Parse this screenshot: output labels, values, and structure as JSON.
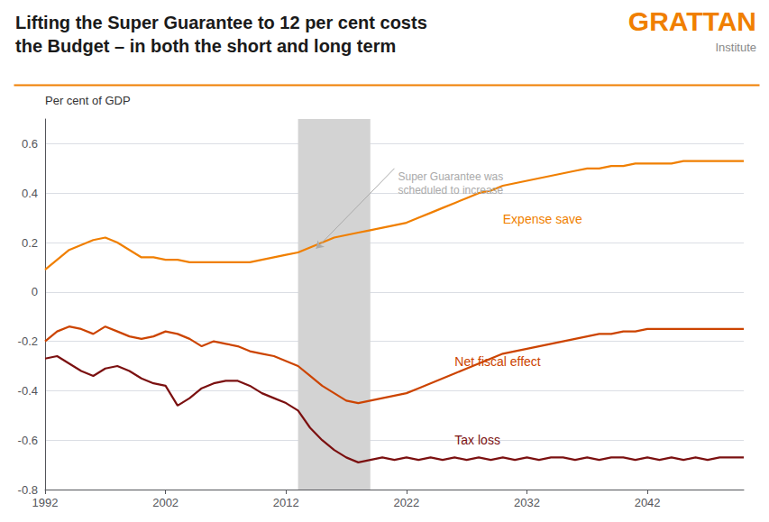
{
  "chart_data": {
    "type": "line",
    "title": "Lifting the Super Guarantee to 12 per cent costs",
    "subtitle": "the Budget – in both the short and long term",
    "title_color": "#1a1a1a",
    "background_color": "#ffffff",
    "ylabel": "Per cent of GDP",
    "x": [
      1992,
      1993,
      1994,
      1995,
      1996,
      1997,
      1998,
      1999,
      2000,
      2001,
      2002,
      2003,
      2004,
      2005,
      2006,
      2007,
      2008,
      2009,
      2010,
      2011,
      2012,
      2013,
      2014,
      2015,
      2016,
      2017,
      2018,
      2019,
      2020,
      2021,
      2022,
      2023,
      2024,
      2025,
      2026,
      2027,
      2028,
      2029,
      2030,
      2031,
      2032,
      2033,
      2034,
      2035,
      2036,
      2037,
      2038,
      2039,
      2040,
      2041,
      2042,
      2043,
      2044,
      2045,
      2046,
      2047,
      2048,
      2049,
      2050
    ],
    "series": [
      {
        "name": "Expense save",
        "color": "#F07F00",
        "label_at": [
          2030,
          0.295
        ],
        "values": [
          0.09,
          0.13,
          0.17,
          0.19,
          0.21,
          0.22,
          0.2,
          0.17,
          0.14,
          0.14,
          0.13,
          0.13,
          0.12,
          0.12,
          0.12,
          0.12,
          0.12,
          0.12,
          0.13,
          0.14,
          0.15,
          0.16,
          0.18,
          0.2,
          0.22,
          0.23,
          0.24,
          0.25,
          0.26,
          0.27,
          0.28,
          0.3,
          0.32,
          0.34,
          0.36,
          0.38,
          0.4,
          0.41,
          0.43,
          0.44,
          0.45,
          0.46,
          0.47,
          0.48,
          0.49,
          0.5,
          0.5,
          0.51,
          0.51,
          0.52,
          0.52,
          0.52,
          0.52,
          0.53,
          0.53,
          0.53,
          0.53,
          0.53,
          0.53
        ]
      },
      {
        "name": "Net fiscal effect",
        "color": "#CC4400",
        "label_at": [
          2026,
          -0.28
        ],
        "values": [
          -0.2,
          -0.16,
          -0.14,
          -0.15,
          -0.17,
          -0.14,
          -0.16,
          -0.18,
          -0.19,
          -0.18,
          -0.16,
          -0.17,
          -0.19,
          -0.22,
          -0.2,
          -0.21,
          -0.22,
          -0.24,
          -0.25,
          -0.26,
          -0.28,
          -0.3,
          -0.34,
          -0.38,
          -0.41,
          -0.44,
          -0.45,
          -0.44,
          -0.43,
          -0.42,
          -0.41,
          -0.39,
          -0.37,
          -0.35,
          -0.33,
          -0.31,
          -0.29,
          -0.27,
          -0.25,
          -0.24,
          -0.23,
          -0.22,
          -0.21,
          -0.2,
          -0.19,
          -0.18,
          -0.17,
          -0.17,
          -0.16,
          -0.16,
          -0.15,
          -0.15,
          -0.15,
          -0.15,
          -0.15,
          -0.15,
          -0.15,
          -0.15,
          -0.15
        ]
      },
      {
        "name": "Tax loss",
        "color": "#7B1010",
        "label_at": [
          2026,
          -0.6
        ],
        "values": [
          -0.27,
          -0.26,
          -0.29,
          -0.32,
          -0.34,
          -0.31,
          -0.3,
          -0.32,
          -0.35,
          -0.37,
          -0.38,
          -0.46,
          -0.43,
          -0.39,
          -0.37,
          -0.36,
          -0.36,
          -0.38,
          -0.41,
          -0.43,
          -0.45,
          -0.48,
          -0.55,
          -0.6,
          -0.64,
          -0.67,
          -0.69,
          -0.68,
          -0.67,
          -0.68,
          -0.67,
          -0.68,
          -0.67,
          -0.68,
          -0.67,
          -0.68,
          -0.67,
          -0.68,
          -0.67,
          -0.68,
          -0.67,
          -0.68,
          -0.67,
          -0.67,
          -0.68,
          -0.67,
          -0.68,
          -0.67,
          -0.67,
          -0.68,
          -0.67,
          -0.68,
          -0.67,
          -0.68,
          -0.67,
          -0.68,
          -0.67,
          -0.67,
          -0.67
        ]
      }
    ],
    "xlim": [
      1992,
      2050
    ],
    "ylim": [
      -0.8,
      0.7
    ],
    "xticks": [
      1992,
      2002,
      2012,
      2022,
      2032,
      2042
    ],
    "yticks": [
      -0.8,
      -0.6,
      -0.4,
      -0.2,
      0,
      0.2,
      0.4,
      0.6
    ],
    "grid": true,
    "shaded_region": {
      "x": [
        2013,
        2019
      ],
      "color": "#d3d3d3"
    },
    "annotations": [
      {
        "text": "Super Guarantee was\nscheduled to increase",
        "x": 2021,
        "y": 0.5,
        "arrow_to": [
          2014.5,
          0.175
        ],
        "color": "#aaaaaa"
      }
    ],
    "logo": {
      "text": "GRATTAN",
      "subtext": "Institute",
      "color": "#F07F00"
    }
  }
}
